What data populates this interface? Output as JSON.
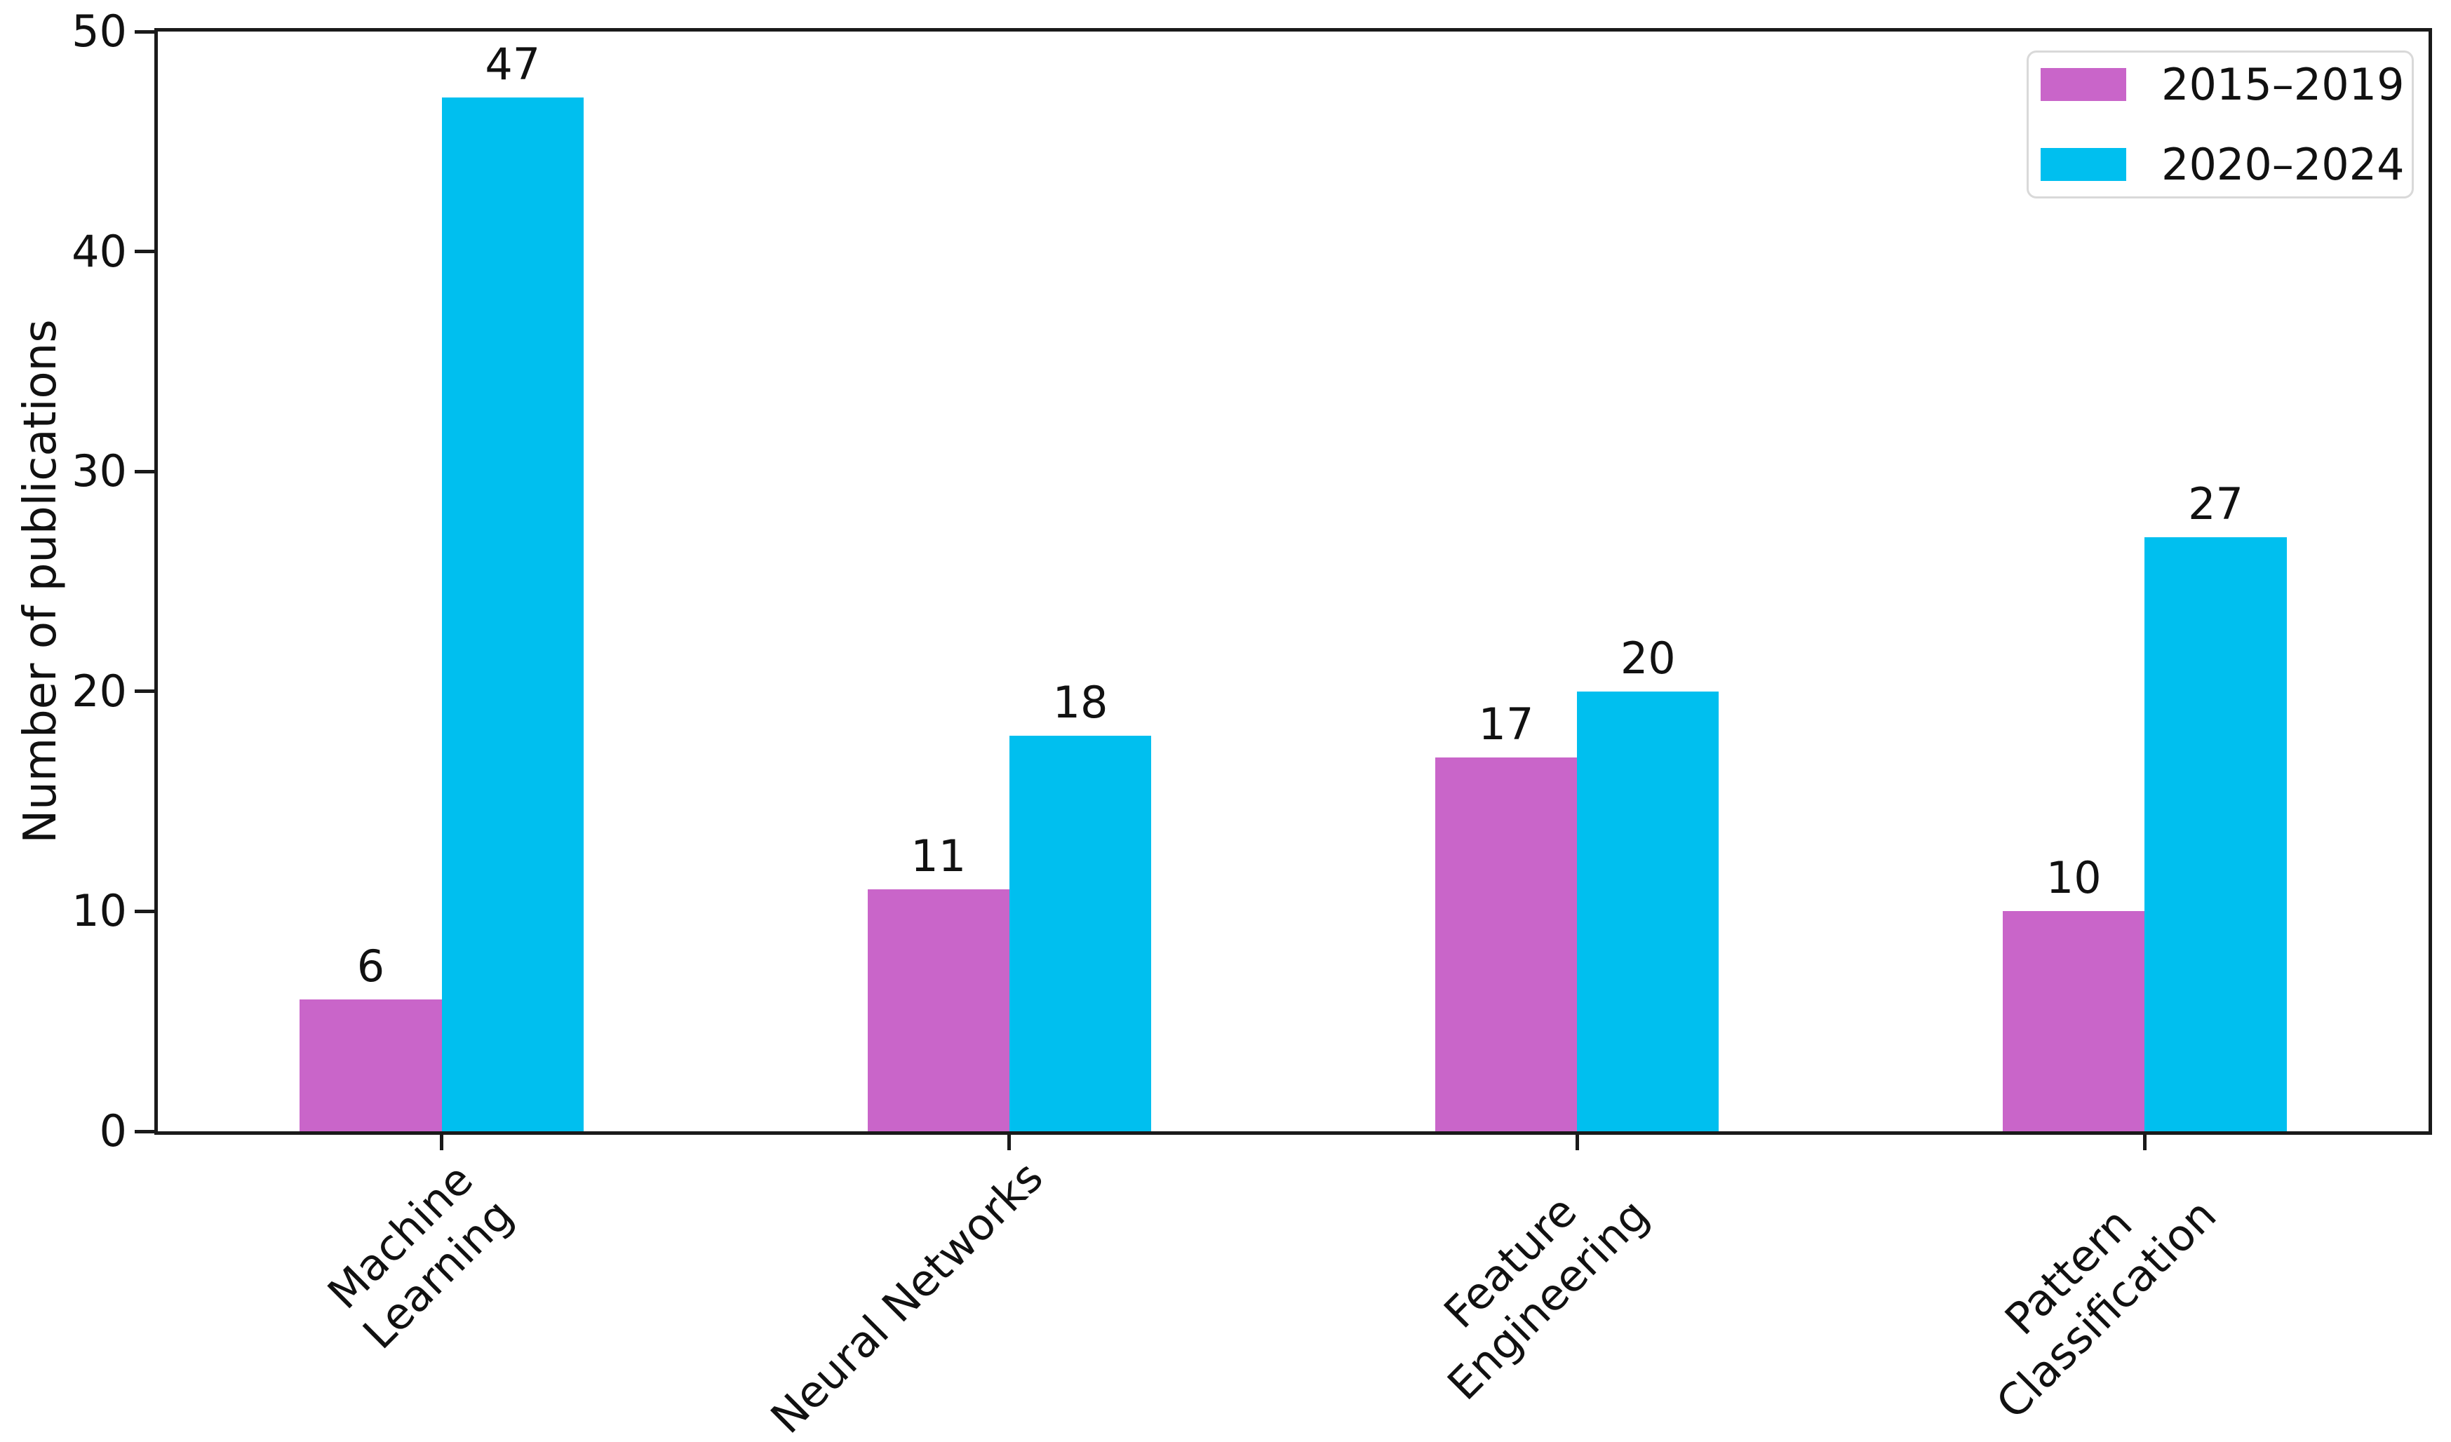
{
  "chart_data": {
    "type": "bar",
    "title": "",
    "xlabel": "",
    "ylabel": "Number of publications",
    "ylim": [
      0,
      50
    ],
    "yticks": [
      0,
      10,
      20,
      30,
      40,
      50
    ],
    "categories": [
      "Machine\nLearning",
      "Neural Networks",
      "Feature\nEngineering",
      "Pattern\nClassification"
    ],
    "series": [
      {
        "name": "2015–2019",
        "color": "#c965c9",
        "values": [
          6,
          11,
          17,
          10
        ]
      },
      {
        "name": "2020–2024",
        "color": "#00bfef",
        "values": [
          47,
          18,
          20,
          27
        ]
      }
    ],
    "bar_width_fraction": 0.25,
    "value_labels_shown": true,
    "legend_position": "upper right",
    "grid": false
  },
  "style": {
    "axis_color": "#1a1a1a",
    "text_color": "#111111",
    "background": "#ffffff",
    "legend_border_color": "#d9d9d9"
  }
}
